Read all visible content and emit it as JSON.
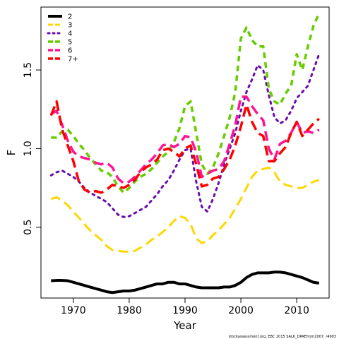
{
  "chart_data": {
    "type": "line",
    "xlabel": "Year",
    "ylabel": "F",
    "xlim": [
      1964.2,
      2015.8
    ],
    "ylim": [
      0.05,
      1.9
    ],
    "xticks": [
      1970,
      1980,
      1990,
      2000,
      2010
    ],
    "xtick_labels": [
      "1970",
      "1980",
      "1990",
      "2000",
      "2010"
    ],
    "yticks": [
      0.5,
      1.0,
      1.5
    ],
    "ytick_labels": [
      "0.5",
      "1.0",
      "1.5"
    ],
    "grid": false,
    "legend_position": "top-left",
    "years": [
      1966,
      1967,
      1968,
      1969,
      1970,
      1971,
      1972,
      1973,
      1974,
      1975,
      1976,
      1977,
      1978,
      1979,
      1980,
      1981,
      1982,
      1983,
      1984,
      1985,
      1986,
      1987,
      1988,
      1989,
      1990,
      1991,
      1992,
      1993,
      1994,
      1995,
      1996,
      1997,
      1998,
      1999,
      2000,
      2001,
      2002,
      2003,
      2004,
      2005,
      2006,
      2007,
      2008,
      2009,
      2010,
      2011,
      2012,
      2013,
      2014
    ],
    "series": [
      {
        "name": "2",
        "color": "#000000",
        "dash": "solid",
        "width": 4,
        "values": [
          0.16,
          0.162,
          0.162,
          0.16,
          0.15,
          0.14,
          0.13,
          0.12,
          0.11,
          0.1,
          0.09,
          0.085,
          0.09,
          0.095,
          0.095,
          0.1,
          0.11,
          0.12,
          0.13,
          0.14,
          0.14,
          0.15,
          0.15,
          0.14,
          0.14,
          0.13,
          0.12,
          0.115,
          0.115,
          0.115,
          0.115,
          0.12,
          0.12,
          0.13,
          0.15,
          0.18,
          0.2,
          0.21,
          0.21,
          0.21,
          0.215,
          0.215,
          0.21,
          0.2,
          0.19,
          0.18,
          0.165,
          0.15,
          0.145
        ]
      },
      {
        "name": "3",
        "color": "#FFD700",
        "dash": "long",
        "width": 3,
        "values": [
          0.68,
          0.69,
          0.67,
          0.64,
          0.6,
          0.56,
          0.52,
          0.48,
          0.45,
          0.42,
          0.38,
          0.355,
          0.35,
          0.345,
          0.345,
          0.35,
          0.37,
          0.39,
          0.42,
          0.44,
          0.47,
          0.5,
          0.54,
          0.57,
          0.56,
          0.52,
          0.43,
          0.4,
          0.41,
          0.45,
          0.48,
          0.52,
          0.56,
          0.62,
          0.68,
          0.75,
          0.82,
          0.86,
          0.87,
          0.88,
          0.85,
          0.79,
          0.77,
          0.76,
          0.75,
          0.75,
          0.77,
          0.79,
          0.8
        ]
      },
      {
        "name": "4",
        "color": "#6A0DAD",
        "dash": "dot",
        "width": 3,
        "values": [
          0.83,
          0.85,
          0.86,
          0.84,
          0.82,
          0.79,
          0.75,
          0.72,
          0.7,
          0.68,
          0.66,
          0.62,
          0.58,
          0.565,
          0.57,
          0.59,
          0.61,
          0.63,
          0.67,
          0.71,
          0.76,
          0.8,
          0.86,
          0.93,
          0.99,
          1.0,
          0.79,
          0.63,
          0.6,
          0.68,
          0.78,
          0.9,
          1.0,
          1.1,
          1.24,
          1.36,
          1.44,
          1.53,
          1.5,
          1.34,
          1.2,
          1.16,
          1.18,
          1.24,
          1.32,
          1.36,
          1.4,
          1.5,
          1.6
        ]
      },
      {
        "name": "5",
        "color": "#66CC00",
        "dash": "mid",
        "width": 3.5,
        "values": [
          1.07,
          1.07,
          1.11,
          1.12,
          1.08,
          1.03,
          0.99,
          0.94,
          0.9,
          0.86,
          0.85,
          0.82,
          0.76,
          0.72,
          0.75,
          0.79,
          0.82,
          0.84,
          0.87,
          0.91,
          0.95,
          0.98,
          1.04,
          1.13,
          1.27,
          1.3,
          1.1,
          0.9,
          0.84,
          0.88,
          0.97,
          1.08,
          1.2,
          1.36,
          1.7,
          1.77,
          1.69,
          1.65,
          1.65,
          1.38,
          1.3,
          1.28,
          1.35,
          1.4,
          1.6,
          1.5,
          1.65,
          1.78,
          1.86
        ]
      },
      {
        "name": "6",
        "color": "#FF1493",
        "dash": "long",
        "width": 3.5,
        "values": [
          1.22,
          1.24,
          1.15,
          1.05,
          0.98,
          0.95,
          0.94,
          0.93,
          0.91,
          0.9,
          0.91,
          0.88,
          0.81,
          0.78,
          0.79,
          0.82,
          0.86,
          0.9,
          0.93,
          0.97,
          1.02,
          1.03,
          1.01,
          1.03,
          1.08,
          1.07,
          0.98,
          0.82,
          0.84,
          0.86,
          0.87,
          0.92,
          1.03,
          1.15,
          1.33,
          1.33,
          1.27,
          1.22,
          1.18,
          1.0,
          0.93,
          1.03,
          1.05,
          1.1,
          1.17,
          1.1,
          1.11,
          1.1,
          1.12
        ]
      },
      {
        "name": "7+",
        "color": "#FF0000",
        "dash": "long",
        "width": 3.5,
        "values": [
          1.21,
          1.3,
          1.12,
          1.02,
          0.92,
          0.79,
          0.74,
          0.72,
          0.73,
          0.72,
          0.74,
          0.77,
          0.76,
          0.75,
          0.77,
          0.8,
          0.85,
          0.88,
          0.9,
          0.93,
          0.99,
          1.0,
          0.98,
          0.95,
          1.0,
          1.02,
          0.9,
          0.76,
          0.77,
          0.81,
          0.82,
          0.87,
          0.93,
          1.02,
          1.14,
          1.28,
          1.17,
          1.1,
          1.08,
          0.92,
          0.92,
          0.97,
          1.01,
          1.1,
          1.17,
          1.08,
          1.12,
          1.16,
          1.19
        ]
      }
    ]
  },
  "footer": "stockassessment.org, EBC 2015 SALK_DPAEfrom2007, r4903"
}
